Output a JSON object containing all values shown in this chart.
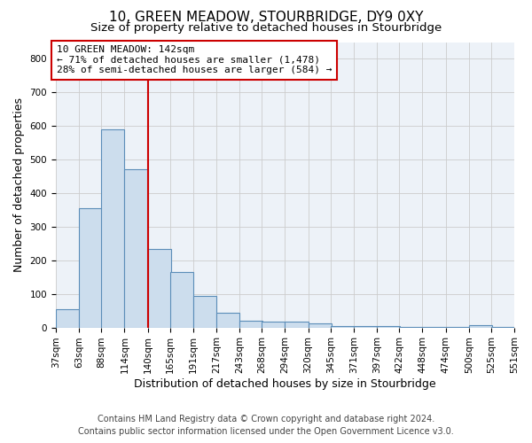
{
  "title": "10, GREEN MEADOW, STOURBRIDGE, DY9 0XY",
  "subtitle": "Size of property relative to detached houses in Stourbridge",
  "xlabel": "Distribution of detached houses by size in Stourbridge",
  "ylabel": "Number of detached properties",
  "footer_line1": "Contains HM Land Registry data © Crown copyright and database right 2024.",
  "footer_line2": "Contains public sector information licensed under the Open Government Licence v3.0.",
  "property_label": "10 GREEN MEADOW: 142sqm",
  "annotation_line1": "← 71% of detached houses are smaller (1,478)",
  "annotation_line2": "28% of semi-detached houses are larger (584) →",
  "vline_x": 140,
  "bar_color": "#ccdded",
  "bar_edge_color": "#5b8db8",
  "vline_color": "#cc0000",
  "annotation_box_edge": "#cc0000",
  "grid_color": "#cccccc",
  "background_color": "#edf2f8",
  "bins": [
    37,
    63,
    88,
    114,
    140,
    165,
    191,
    217,
    243,
    268,
    294,
    320,
    345,
    371,
    397,
    422,
    448,
    474,
    500,
    525,
    551
  ],
  "values": [
    55,
    355,
    590,
    470,
    235,
    165,
    95,
    45,
    20,
    18,
    18,
    13,
    5,
    5,
    5,
    2,
    2,
    2,
    8,
    2,
    2
  ],
  "ylim": [
    0,
    850
  ],
  "yticks": [
    0,
    100,
    200,
    300,
    400,
    500,
    600,
    700,
    800
  ],
  "title_fontsize": 11,
  "subtitle_fontsize": 9.5,
  "axis_label_fontsize": 9,
  "tick_fontsize": 7.5,
  "annotation_fontsize": 8,
  "footer_fontsize": 7
}
